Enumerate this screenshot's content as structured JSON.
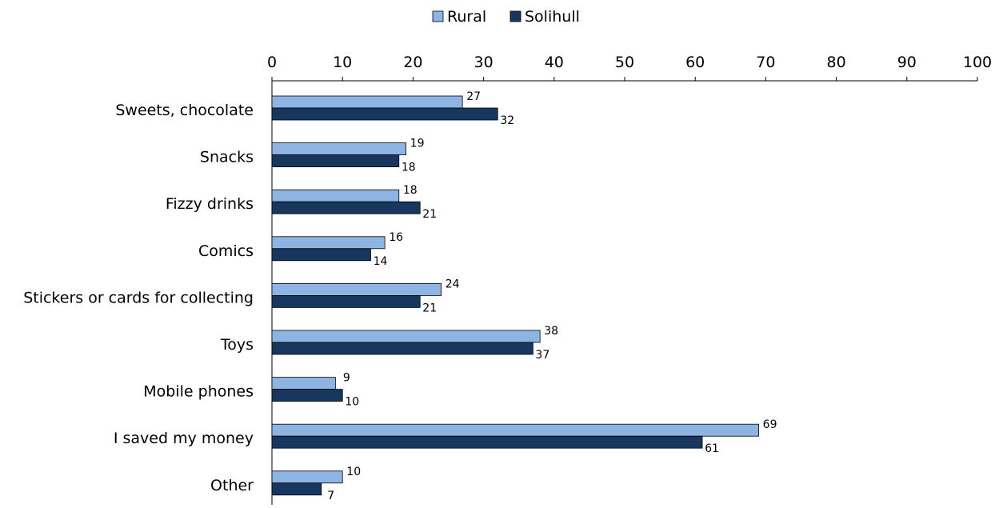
{
  "chart_data": {
    "type": "bar",
    "orientation": "horizontal",
    "title": "",
    "xlabel": "",
    "ylabel": "",
    "xlim": [
      0,
      100
    ],
    "ticks": [
      0,
      10,
      20,
      30,
      40,
      50,
      60,
      70,
      80,
      90,
      100
    ],
    "grid": false,
    "legend_position": "top",
    "categories": [
      "Sweets, chocolate",
      "Snacks",
      "Fizzy drinks",
      "Comics",
      "Stickers or cards for collecting",
      "Toys",
      "Mobile phones",
      "I saved my money",
      "Other"
    ],
    "series": [
      {
        "name": "Rural",
        "color": "#8eb4e3",
        "values": [
          27,
          19,
          18,
          16,
          24,
          38,
          9,
          69,
          10
        ]
      },
      {
        "name": "Solihull",
        "color": "#17375e",
        "values": [
          32,
          18,
          21,
          14,
          21,
          37,
          10,
          61,
          7
        ]
      }
    ]
  }
}
